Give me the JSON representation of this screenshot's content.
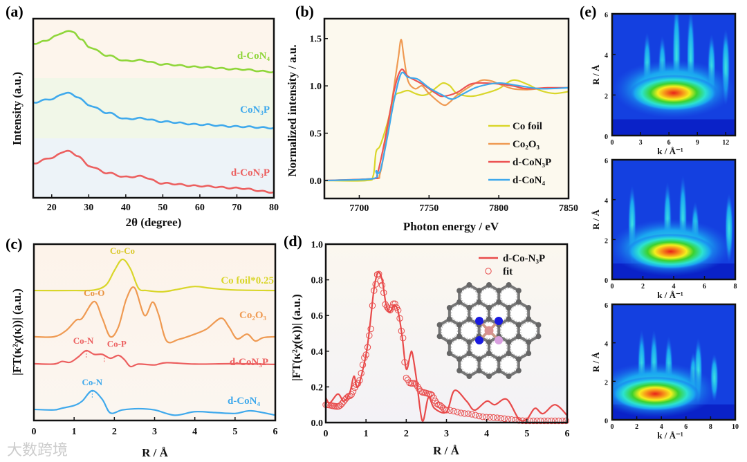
{
  "watermark": "大数跨境",
  "chart_data": [
    {
      "panel": "(a)",
      "type": "line",
      "xlabel": "2θ (degree)",
      "ylabel": "Intensity (a.u.)",
      "xlim": [
        15,
        80
      ],
      "ylim": [
        0,
        10
      ],
      "xticks": [
        20,
        30,
        40,
        50,
        60,
        70,
        80
      ],
      "series": [
        {
          "name": "d-CoN₄",
          "color": "#8fd63a",
          "x": [
            15,
            18,
            21,
            24,
            26,
            28,
            30,
            35,
            40,
            44,
            50,
            60,
            70,
            80
          ],
          "y": [
            8.61,
            8.73,
            9.03,
            9.31,
            9.23,
            8.84,
            8.42,
            7.95,
            7.64,
            7.68,
            7.45,
            7.3,
            7.18,
            7.03
          ]
        },
        {
          "name": "CoN₃P",
          "color": "#3fa9ec",
          "x": [
            15,
            20,
            24,
            27,
            30,
            35,
            40,
            44,
            50,
            60,
            70,
            80
          ],
          "y": [
            5.33,
            5.52,
            5.87,
            5.64,
            5.17,
            4.75,
            4.4,
            4.44,
            4.25,
            4.09,
            3.98,
            3.9
          ]
        },
        {
          "name": "d-CoN₃P",
          "color": "#ec5f5f",
          "x": [
            15,
            20,
            24,
            27,
            30,
            35,
            40,
            44,
            50,
            60,
            70,
            80
          ],
          "y": [
            1.93,
            2.24,
            2.63,
            2.36,
            1.78,
            1.39,
            1.16,
            1.2,
            0.81,
            0.66,
            0.54,
            0.31
          ]
        }
      ]
    },
    {
      "panel": "(b)",
      "type": "line",
      "xlabel": "Photon energy / eV",
      "ylabel": "Normalized intensity / a.u.",
      "xlim": [
        7675,
        7850
      ],
      "ylim": [
        -0.19,
        1.71
      ],
      "xticks": [
        7700,
        7750,
        7800,
        7850
      ],
      "yticks": [
        "0.0",
        "0.5",
        "1.0",
        "1.5"
      ],
      "legend": "bottom-right",
      "series": [
        {
          "name": "Co foil",
          "color": "#d9d62a",
          "x": [
            7675,
            7705,
            7710,
            7712,
            7715,
            7720,
            7725,
            7730,
            7735,
            7740,
            7745,
            7750,
            7755,
            7760,
            7765,
            7770,
            7780,
            7790,
            7800,
            7810,
            7820,
            7830,
            7840,
            7850
          ],
          "y": [
            0,
            0,
            0.05,
            0.3,
            0.37,
            0.6,
            0.88,
            0.93,
            0.95,
            0.92,
            0.9,
            0.92,
            0.98,
            1.03,
            1.0,
            0.92,
            0.89,
            0.92,
            0.97,
            1.06,
            1.02,
            0.95,
            0.92,
            0.94
          ]
        },
        {
          "name": "Co₂O₃",
          "color": "#ef9a52",
          "x": [
            7675,
            7710,
            7715,
            7720,
            7725,
            7728,
            7730,
            7732,
            7735,
            7740,
            7745,
            7750,
            7760,
            7765,
            7770,
            7780,
            7788,
            7795,
            7800,
            7810,
            7820,
            7830,
            7850
          ],
          "y": [
            0,
            0.02,
            0.08,
            0.5,
            1.0,
            1.3,
            1.49,
            1.3,
            1.05,
            0.97,
            1.0,
            0.92,
            0.8,
            0.83,
            0.9,
            1.0,
            1.06,
            1.05,
            1.02,
            0.97,
            0.96,
            0.97,
            0.98
          ]
        },
        {
          "name": "d-CoN₃P",
          "color": "#ec5353",
          "x": [
            7675,
            7710,
            7713,
            7718,
            7725,
            7730,
            7735,
            7745,
            7755,
            7760,
            7770,
            7780,
            7790,
            7800,
            7810,
            7820,
            7835,
            7850
          ],
          "y": [
            0,
            0.02,
            0.07,
            0.4,
            0.95,
            1.17,
            1.1,
            1.02,
            0.92,
            0.89,
            0.93,
            1.02,
            1.03,
            1.02,
            1.0,
            0.97,
            0.98,
            0.98
          ]
        },
        {
          "name": "d-CoN₄",
          "color": "#3fa9ec",
          "x": [
            7675,
            7710,
            7712,
            7715,
            7720,
            7725,
            7730,
            7735,
            7742,
            7750,
            7760,
            7767,
            7775,
            7785,
            7800,
            7815,
            7830,
            7850
          ],
          "y": [
            0,
            0.02,
            0.1,
            0.1,
            0.45,
            0.85,
            1.13,
            1.09,
            1.07,
            0.98,
            0.9,
            0.86,
            0.92,
            0.99,
            1.03,
            1.0,
            0.97,
            0.98
          ]
        }
      ]
    },
    {
      "panel": "(c)",
      "type": "line",
      "xlabel": "R / Å",
      "ylabel": "|FT(κ²χ(κ))| (a.u.)",
      "xlim": [
        0,
        6
      ],
      "ylim": [
        0,
        10
      ],
      "xticks": [
        0,
        1,
        2,
        3,
        4,
        5,
        6
      ],
      "series": [
        {
          "name": "Co foil*0.25",
          "color": "#d9d62a",
          "x": [
            0,
            1,
            1.5,
            1.8,
            2.0,
            2.2,
            2.4,
            2.6,
            2.8,
            3.2,
            3.6,
            4.0,
            4.4,
            5.0,
            6.0
          ],
          "y": [
            7.37,
            7.37,
            7.4,
            7.7,
            8.5,
            9.14,
            8.6,
            7.5,
            7.37,
            7.3,
            7.45,
            7.6,
            7.5,
            7.4,
            7.37
          ]
        },
        {
          "name": "Co₂O₃",
          "color": "#ef9a52",
          "x": [
            0,
            0.5,
            0.8,
            1.05,
            1.2,
            1.5,
            1.7,
            1.9,
            2.1,
            2.3,
            2.5,
            2.75,
            2.95,
            3.1,
            3.3,
            3.6,
            4.0,
            4.3,
            4.65,
            4.85,
            5.05,
            5.3,
            5.5,
            5.7,
            6.0
          ],
          "y": [
            4.75,
            4.75,
            5.1,
            5.69,
            5.8,
            6.75,
            5.8,
            4.75,
            5.3,
            6.9,
            7.53,
            5.96,
            6.71,
            6.0,
            4.51,
            4.6,
            4.9,
            5.2,
            5.8,
            5.3,
            4.63,
            4.9,
            4.51,
            4.7,
            4.75
          ]
        },
        {
          "name": "d-CoN₃P",
          "color": "#ec5f5f",
          "x": [
            0,
            0.5,
            0.7,
            0.9,
            1.1,
            1.3,
            1.5,
            1.7,
            1.9,
            2.1,
            2.25,
            2.4,
            2.6,
            3.0,
            3.3,
            4.0,
            5.0,
            6.0
          ],
          "y": [
            3.22,
            3.2,
            3.35,
            3.3,
            3.6,
            3.96,
            3.75,
            3.75,
            3.53,
            3.69,
            3.45,
            3.06,
            3.2,
            3.15,
            3.28,
            3.2,
            3.22,
            3.18
          ]
        },
        {
          "name": "d-CoN₄",
          "color": "#3fa9ec",
          "x": [
            0,
            0.5,
            0.7,
            1.0,
            1.2,
            1.45,
            1.7,
            1.9,
            2.2,
            2.6,
            3.0,
            3.5,
            4.0,
            4.5,
            5.0,
            5.4,
            6.0
          ],
          "y": [
            0.63,
            0.6,
            0.7,
            0.85,
            1.1,
            1.69,
            1.2,
            0.43,
            0.6,
            0.67,
            0.6,
            0.3,
            0.5,
            0.45,
            0.4,
            0.55,
            0.3
          ]
        }
      ],
      "annotations": [
        {
          "text": "Co-Co",
          "x": 2.2,
          "series": 0,
          "color": "#d9c82a"
        },
        {
          "text": "Co-O",
          "x": 1.5,
          "series": 1,
          "color": "#e8923e"
        },
        {
          "text": "Co-N",
          "x": 1.3,
          "series": 2,
          "color": "#ec5f5f"
        },
        {
          "text": "Co-P",
          "x": 1.75,
          "series": 2,
          "color": "#ec5f5f"
        },
        {
          "text": "Co-N",
          "x": 1.45,
          "series": 3,
          "color": "#3fa9ec"
        }
      ]
    },
    {
      "panel": "(d)",
      "type": "line",
      "xlabel": "R / Å",
      "ylabel": "|FT(κ²χ(κ))| (a.u.)",
      "xlim": [
        0,
        6
      ],
      "ylim": [
        0,
        1
      ],
      "xticks": [
        0,
        1,
        2,
        3,
        4,
        5,
        6
      ],
      "yticks": [
        "0.0",
        "0.2",
        "0.4",
        "0.6",
        "0.8",
        "1.0"
      ],
      "legend": "top-right",
      "series": [
        {
          "name": "d-Co-N₃P",
          "color": "#e84a4a",
          "style": "line",
          "x": [
            0,
            0.1,
            0.3,
            0.45,
            0.6,
            0.7,
            0.8,
            1.0,
            1.1,
            1.2,
            1.3,
            1.4,
            1.5,
            1.6,
            1.7,
            1.8,
            1.9,
            2.0,
            2.1,
            2.15,
            2.25,
            2.4,
            2.55,
            2.7,
            3.0,
            3.2,
            3.5,
            3.7,
            4.0,
            4.2,
            4.5,
            4.8,
            5.0,
            5.2,
            5.4,
            5.7,
            6.0
          ],
          "y": [
            0.14,
            0.11,
            0.16,
            0.12,
            0.17,
            0.26,
            0.2,
            0.38,
            0.55,
            0.75,
            0.84,
            0.8,
            0.66,
            0.62,
            0.66,
            0.62,
            0.48,
            0.3,
            0.38,
            0.39,
            0.25,
            0.01,
            0.14,
            0.08,
            0.06,
            0.18,
            0.12,
            0.07,
            0.12,
            0.1,
            0.13,
            0.02,
            0.02,
            0.08,
            0.05,
            0.1,
            0.04
          ]
        },
        {
          "name": "fit",
          "color": "#e84a4a",
          "style": "circles",
          "x": [
            0,
            0.3,
            0.6,
            0.8,
            1.0,
            1.1,
            1.2,
            1.3,
            1.4,
            1.5,
            1.6,
            1.7,
            1.8,
            1.9,
            2.0,
            2.1,
            2.2,
            2.4,
            2.6,
            2.8,
            3.0,
            3.5,
            4.0,
            5.0,
            6.0
          ],
          "y": [
            0.1,
            0.09,
            0.15,
            0.22,
            0.38,
            0.5,
            0.74,
            0.84,
            0.77,
            0.65,
            0.63,
            0.67,
            0.63,
            0.5,
            0.25,
            0.22,
            0.22,
            0.17,
            0.16,
            0.1,
            0.07,
            0.05,
            0.03,
            0.01,
            0.01
          ]
        }
      ]
    },
    {
      "panel": "(e)",
      "type": "heatmap",
      "plots": [
        {
          "xlabel": "k / Å⁻¹",
          "ylabel": "R / Å",
          "xlim": [
            0,
            13
          ],
          "ylim": [
            0,
            6
          ],
          "xticks": [
            0,
            3,
            6,
            9,
            12
          ],
          "yticks": [
            0,
            2,
            4,
            6
          ],
          "maximum": {
            "k": 6.5,
            "R": 2.1
          }
        },
        {
          "xlabel": "k / Å⁻¹",
          "ylabel": "R / Å",
          "xlim": [
            0,
            8
          ],
          "ylim": [
            0,
            6
          ],
          "xticks": [
            0,
            2,
            4,
            6,
            8
          ],
          "yticks": [
            0,
            2,
            4,
            6
          ],
          "maximum": {
            "k": 3.8,
            "R": 1.4
          }
        },
        {
          "xlabel": "k / Å⁻¹",
          "ylabel": "R / Å",
          "xlim": [
            0,
            10
          ],
          "ylim": [
            0,
            6
          ],
          "xticks": [
            0,
            2,
            4,
            6,
            8,
            10
          ],
          "yticks": [
            0,
            2,
            4,
            6
          ],
          "maximum": {
            "k": 3.5,
            "R": 1.35
          }
        }
      ]
    }
  ]
}
